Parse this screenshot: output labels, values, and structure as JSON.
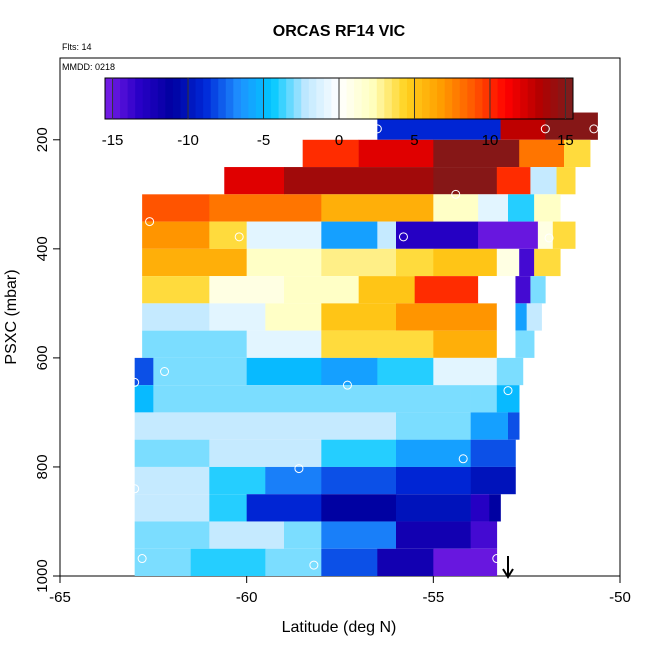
{
  "chart_data": {
    "type": "heatmap",
    "title": "ORCAS RF14 VIC",
    "annotations": [
      "Flts: 14",
      "MMDD: 0218"
    ],
    "xlabel": "Latitude (deg N)",
    "ylabel": "PSXC (mbar)",
    "xlim": [
      -65,
      -50
    ],
    "ylim": [
      1000,
      50
    ],
    "y_reversed": true,
    "x_ticks": [
      -65,
      -60,
      -55,
      -50
    ],
    "y_ticks": [
      200,
      400,
      600,
      800,
      1000
    ],
    "grid": false,
    "colorbar": {
      "range": [
        -15.5,
        15.5
      ],
      "ticks": [
        -15,
        -10,
        -5,
        0,
        5,
        10,
        15
      ],
      "colors": [
        "#7a1ee6",
        "#2a00c8",
        "#0000a0",
        "#0028d8",
        "#1e90ff",
        "#00c8ff",
        "#bfe8ff",
        "#ffffff",
        "#ffffc0",
        "#ffd21e",
        "#ffa000",
        "#ff5a00",
        "#ff0000",
        "#b40000",
        "#781e1e"
      ],
      "placement": "top"
    },
    "levels": [
      {
        "p": 175,
        "segments": [
          [
            -56.5,
            -53.2,
            -9
          ],
          [
            -53.2,
            -52.0,
            13
          ],
          [
            -52.0,
            -50.6,
            15
          ]
        ]
      },
      {
        "p": 225,
        "segments": [
          [
            -58.5,
            -57.0,
            10
          ],
          [
            -57.0,
            -55.0,
            12
          ],
          [
            -55.0,
            -52.7,
            15
          ],
          [
            -52.7,
            -51.5,
            8
          ],
          [
            -51.5,
            -50.8,
            4
          ]
        ]
      },
      {
        "p": 275,
        "segments": [
          [
            -60.6,
            -59.0,
            12
          ],
          [
            -59.0,
            -55.0,
            14
          ],
          [
            -55.0,
            -53.3,
            15
          ],
          [
            -53.3,
            -52.4,
            10
          ],
          [
            -52.4,
            -51.7,
            -2
          ],
          [
            -51.7,
            -51.2,
            4
          ]
        ]
      },
      {
        "p": 325,
        "segments": [
          [
            -62.8,
            -61.0,
            9
          ],
          [
            -61.0,
            -58.0,
            8
          ],
          [
            -58.0,
            -55.0,
            6
          ],
          [
            -55.0,
            -53.8,
            2
          ],
          [
            -53.8,
            -53.0,
            -1
          ],
          [
            -53.0,
            -52.3,
            -4
          ],
          [
            -52.3,
            -51.6,
            2
          ]
        ]
      },
      {
        "p": 375,
        "segments": [
          [
            -62.8,
            -61.0,
            7
          ],
          [
            -61.0,
            -60.0,
            4
          ],
          [
            -60.0,
            -58.0,
            -1
          ],
          [
            -58.0,
            -56.5,
            -6
          ],
          [
            -56.5,
            -56.0,
            -2
          ],
          [
            -56.0,
            -53.8,
            -13
          ],
          [
            -53.8,
            -52.2,
            -15
          ],
          [
            -52.2,
            -51.8,
            1
          ],
          [
            -51.8,
            -51.2,
            4
          ]
        ]
      },
      {
        "p": 425,
        "segments": [
          [
            -62.8,
            -60.0,
            6
          ],
          [
            -60.0,
            -58.0,
            2
          ],
          [
            -58.0,
            -56.0,
            3
          ],
          [
            -56.0,
            -55.0,
            4
          ],
          [
            -55.0,
            -53.3,
            5
          ],
          [
            -53.3,
            -52.7,
            1
          ],
          [
            -52.7,
            -52.3,
            -14
          ],
          [
            -52.3,
            -51.6,
            4
          ]
        ]
      },
      {
        "p": 475,
        "segments": [
          [
            -62.8,
            -61.0,
            4
          ],
          [
            -61.0,
            -59.0,
            1
          ],
          [
            -59.0,
            -57.0,
            2
          ],
          [
            -57.0,
            -55.5,
            5
          ],
          [
            -55.5,
            -53.8,
            10
          ],
          [
            -53.8,
            -52.8,
            0
          ],
          [
            -52.8,
            -52.4,
            -14
          ],
          [
            -52.4,
            -52.0,
            -3
          ]
        ]
      },
      {
        "p": 525,
        "segments": [
          [
            -62.8,
            -61.0,
            -2
          ],
          [
            -61.0,
            -59.5,
            -1
          ],
          [
            -59.5,
            -58.0,
            2
          ],
          [
            -58.0,
            -56.0,
            5
          ],
          [
            -56.0,
            -53.3,
            7
          ],
          [
            -53.3,
            -52.8,
            0
          ],
          [
            -52.8,
            -52.5,
            -6
          ],
          [
            -52.5,
            -52.1,
            -2
          ]
        ]
      },
      {
        "p": 575,
        "segments": [
          [
            -62.8,
            -60.0,
            -3
          ],
          [
            -60.0,
            -58.0,
            -1
          ],
          [
            -58.0,
            -55.0,
            4
          ],
          [
            -55.0,
            -53.3,
            6
          ],
          [
            -53.3,
            -52.8,
            0
          ],
          [
            -52.8,
            -52.3,
            -3
          ]
        ]
      },
      {
        "p": 625,
        "segments": [
          [
            -63.0,
            -62.5,
            -8
          ],
          [
            -62.5,
            -60.0,
            -3
          ],
          [
            -60.0,
            -58.0,
            -5
          ],
          [
            -58.0,
            -56.5,
            -6
          ],
          [
            -56.5,
            -55.0,
            -4
          ],
          [
            -55.0,
            -53.3,
            -1
          ],
          [
            -53.3,
            -52.6,
            -3
          ]
        ]
      },
      {
        "p": 675,
        "segments": [
          [
            -63.0,
            -62.5,
            -5
          ],
          [
            -62.5,
            -54.0,
            -3
          ],
          [
            -54.0,
            -53.3,
            -3
          ],
          [
            -53.3,
            -52.7,
            -5
          ]
        ]
      },
      {
        "p": 725,
        "segments": [
          [
            -63.0,
            -56.0,
            -2
          ],
          [
            -56.0,
            -54.0,
            -3
          ],
          [
            -54.0,
            -53.0,
            -6
          ],
          [
            -53.0,
            -52.7,
            -8
          ]
        ]
      },
      {
        "p": 775,
        "segments": [
          [
            -63.0,
            -61.0,
            -3
          ],
          [
            -61.0,
            -58.0,
            -2
          ],
          [
            -58.0,
            -56.0,
            -4
          ],
          [
            -56.0,
            -54.0,
            -6
          ],
          [
            -54.0,
            -52.8,
            -8
          ]
        ]
      },
      {
        "p": 825,
        "segments": [
          [
            -63.0,
            -61.0,
            -2
          ],
          [
            -61.0,
            -59.5,
            -4
          ],
          [
            -59.5,
            -58.0,
            -7
          ],
          [
            -58.0,
            -56.0,
            -8
          ],
          [
            -56.0,
            -54.0,
            -9
          ],
          [
            -54.0,
            -52.8,
            -10
          ]
        ]
      },
      {
        "p": 875,
        "segments": [
          [
            -63.0,
            -61.0,
            -2
          ],
          [
            -61.0,
            -60.0,
            -4
          ],
          [
            -60.0,
            -58.0,
            -9
          ],
          [
            -58.0,
            -56.0,
            -11
          ],
          [
            -56.0,
            -54.0,
            -10
          ],
          [
            -54.0,
            -53.5,
            -13
          ],
          [
            -53.5,
            -53.2,
            -11
          ]
        ]
      },
      {
        "p": 925,
        "segments": [
          [
            -63.0,
            -61.0,
            -3
          ],
          [
            -61.0,
            -59.0,
            -2
          ],
          [
            -59.0,
            -58.0,
            -3
          ],
          [
            -58.0,
            -56.0,
            -7
          ],
          [
            -56.0,
            -54.0,
            -12
          ],
          [
            -54.0,
            -53.3,
            -14
          ]
        ]
      },
      {
        "p": 975,
        "segments": [
          [
            -63.0,
            -61.5,
            -3
          ],
          [
            -61.5,
            -59.5,
            -4
          ],
          [
            -59.5,
            -58.0,
            -3
          ],
          [
            -58.0,
            -56.5,
            -8
          ],
          [
            -56.5,
            -55.0,
            -12
          ],
          [
            -55.0,
            -53.3,
            -15
          ]
        ]
      }
    ],
    "sample_points": [
      [
        -56.5,
        180
      ],
      [
        -52.0,
        180
      ],
      [
        -50.7,
        180
      ],
      [
        -54.4,
        300
      ],
      [
        -62.6,
        350
      ],
      [
        -60.2,
        378
      ],
      [
        -55.8,
        378
      ],
      [
        -51.9,
        380
      ],
      [
        -53.6,
        485
      ],
      [
        -53.0,
        660
      ],
      [
        -62.2,
        625
      ],
      [
        -63.0,
        645
      ],
      [
        -57.3,
        650
      ],
      [
        -54.2,
        785
      ],
      [
        -58.6,
        803
      ],
      [
        -63.0,
        840
      ],
      [
        -62.8,
        968
      ],
      [
        -58.2,
        980
      ],
      [
        -53.3,
        968
      ]
    ],
    "arrow_lat": -53.0
  }
}
